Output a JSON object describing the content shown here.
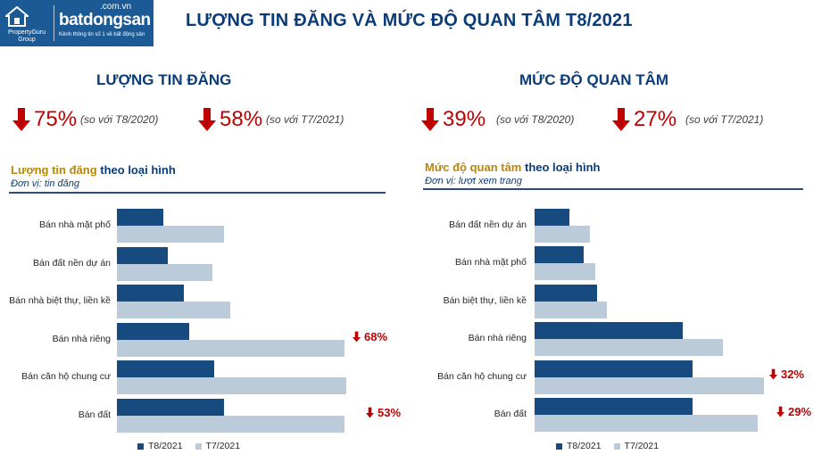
{
  "header": {
    "title": "LƯỢNG TIN ĐĂNG VÀ MỨC ĐỘ QUAN TÂM T8/2021",
    "logo_pg_text": "PropertyGuru Group",
    "logo_brand": "batdongsan",
    "logo_domain": ".com.vn",
    "logo_tagline": "Kênh thông tin số 1 về bất động sản"
  },
  "sections": {
    "listings": {
      "title": "LƯỢNG TIN ĐĂNG",
      "kpis": [
        {
          "value": "75%",
          "compare": "(so với T8/2020)"
        },
        {
          "value": "58%",
          "compare": "(so với T7/2021)"
        }
      ]
    },
    "interest": {
      "title": "MỨC ĐỘ QUAN TÂM",
      "kpis": [
        {
          "value": "39%",
          "compare": "(so với T8/2020)"
        },
        {
          "value": "27%",
          "compare": "(so với T7/2021)"
        }
      ]
    }
  },
  "colors": {
    "brand_blue": "#1c5a96",
    "title_navy": "#0c3c78",
    "decline_red": "#c00000",
    "series_t8_2021": "#174a7e",
    "series_t7_2021": "#bccbd9"
  },
  "chart_data": [
    {
      "type": "bar",
      "orientation": "horizontal",
      "title_part1": "Lượng tin đăng",
      "title_part2": "theo loại hình",
      "unit": "Đơn vị: tin đăng",
      "categories": [
        "Bán nhà mặt phố",
        "Bán đất nền dự án",
        "Bán nhà biệt thự, liền kề",
        "Bán nhà riêng",
        "Bán căn hộ chung cư",
        "Bán đất"
      ],
      "series": [
        {
          "name": "T8/2021",
          "values": [
            20,
            22,
            29,
            31,
            42,
            46
          ]
        },
        {
          "name": "T7/2021",
          "values": [
            46,
            41,
            49,
            98,
            99,
            98
          ]
        }
      ],
      "xlim": [
        0,
        100
      ],
      "annotations": [
        {
          "category": "Bán nhà riêng",
          "text": "68%"
        },
        {
          "category": "Bán đất",
          "text": "53%"
        }
      ],
      "legend": "bottom",
      "grid": false
    },
    {
      "type": "bar",
      "orientation": "horizontal",
      "title_part1": "Mức độ quan tâm",
      "title_part2": "theo loại hình",
      "unit": "Đơn vị: lượt xem trang",
      "categories": [
        "Bán đất nền dự án",
        "Bán nhà mặt phố",
        "Bán biệt thự, liền kề",
        "Bán nhà riêng",
        "Bán căn hộ chung cư",
        "Bán đất"
      ],
      "series": [
        {
          "name": "T8/2021",
          "values": [
            15,
            21,
            27,
            64,
            68,
            68
          ]
        },
        {
          "name": "T7/2021",
          "values": [
            24,
            26,
            31,
            81,
            99,
            96
          ]
        }
      ],
      "xlim": [
        0,
        100
      ],
      "annotations": [
        {
          "category": "Bán căn hộ chung cư",
          "text": "32%"
        },
        {
          "category": "Bán đất",
          "text": "29%"
        }
      ],
      "legend": "bottom",
      "grid": false
    }
  ]
}
